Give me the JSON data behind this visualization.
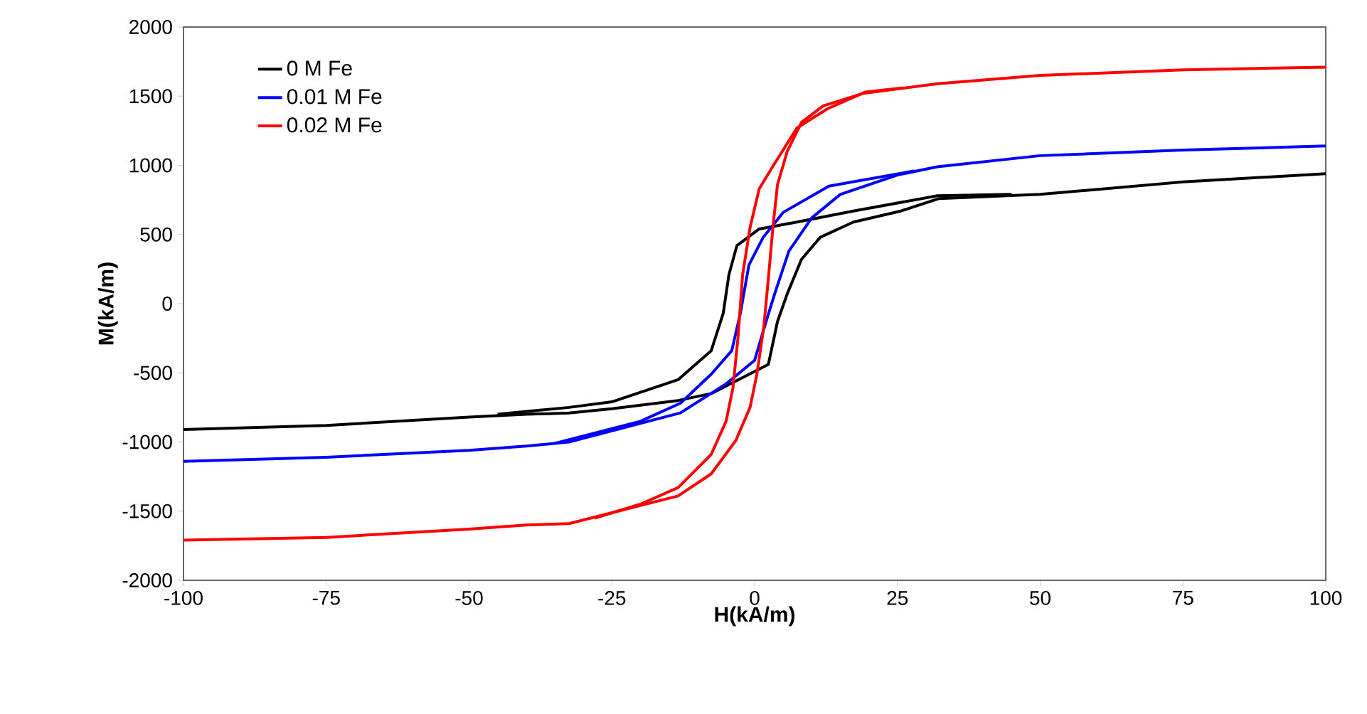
{
  "chart_data": {
    "type": "line",
    "xlabel": "H(kA/m)",
    "ylabel": "M(kA/m)",
    "xlim": [
      -100,
      100
    ],
    "ylim": [
      -2000,
      2000
    ],
    "xticks": [
      -100,
      -75,
      -50,
      -25,
      0,
      25,
      50,
      75,
      100
    ],
    "yticks": [
      -2000,
      -1500,
      -1000,
      -500,
      0,
      500,
      1000,
      1500,
      2000
    ],
    "grid": false,
    "legend": "top left",
    "marker": "none",
    "line_style": "solid",
    "series": [
      {
        "name": "0 M Fe",
        "color": "#000000",
        "x": [
          -100,
          -75,
          -50,
          -40,
          -32.5,
          -25,
          -13.4,
          -7.6,
          2.4,
          4,
          5.7,
          8.2,
          11.5,
          17.3,
          25.6,
          32.3,
          50,
          75,
          100
        ],
        "values": [
          -910,
          -880,
          -820,
          -800,
          -790,
          -760,
          -700,
          -650,
          -440,
          -130,
          70,
          320,
          480,
          590,
          670,
          760,
          790,
          880,
          940
        ]
      },
      {
        "color": "#000000",
        "x": [
          -45,
          -32.5,
          -25,
          -13.4,
          -7.6,
          -5.5,
          -4.5,
          -3.1,
          0.8,
          7.4,
          17.3,
          32,
          45
        ],
        "values": [
          -800,
          -750,
          -710,
          -550,
          -340,
          -70,
          210,
          420,
          540,
          590,
          670,
          780,
          790
        ]
      },
      {
        "name": "0.01 M Fe",
        "color": "#0000ff",
        "x": [
          -100,
          -75,
          -50,
          -40,
          -32.5,
          -13,
          -5,
          0,
          2,
          3.5,
          6,
          10,
          15,
          25,
          32,
          50,
          75,
          100
        ],
        "values": [
          -1140,
          -1110,
          -1060,
          -1030,
          -1000,
          -790,
          -580,
          -410,
          -130,
          70,
          380,
          620,
          790,
          930,
          990,
          1070,
          1110,
          1140
        ]
      },
      {
        "color": "#0000ff",
        "x": [
          -35,
          -20,
          -13,
          -7.6,
          -4,
          -2.5,
          -1,
          1.5,
          5,
          13,
          28
        ],
        "values": [
          -1010,
          -850,
          -720,
          -510,
          -340,
          -70,
          280,
          480,
          660,
          850,
          960
        ]
      },
      {
        "name": "0.02 M Fe",
        "color": "#ff0000",
        "x": [
          -100,
          -75,
          -50,
          -40,
          -32.5,
          -13.4,
          -7.6,
          -3.3,
          -0.8,
          0.4,
          1.6,
          2.4,
          3.2,
          4,
          5.7,
          8.2,
          12,
          19,
          32,
          50,
          75,
          100
        ],
        "values": [
          -1710,
          -1690,
          -1630,
          -1600,
          -1590,
          -1390,
          -1230,
          -990,
          -750,
          -510,
          -170,
          180,
          550,
          860,
          1100,
          1310,
          1430,
          1520,
          1590,
          1650,
          1690,
          1710
        ]
      },
      {
        "color": "#ff0000",
        "x": [
          -28,
          -20,
          -13.4,
          -7.6,
          -5,
          -3.8,
          -2.9,
          -2.1,
          -0.8,
          0.8,
          3.3,
          7.4,
          12.8,
          19.4,
          26
        ],
        "values": [
          -1550,
          -1450,
          -1330,
          -1090,
          -850,
          -610,
          -240,
          210,
          550,
          830,
          1000,
          1270,
          1410,
          1530,
          1560
        ]
      }
    ]
  }
}
